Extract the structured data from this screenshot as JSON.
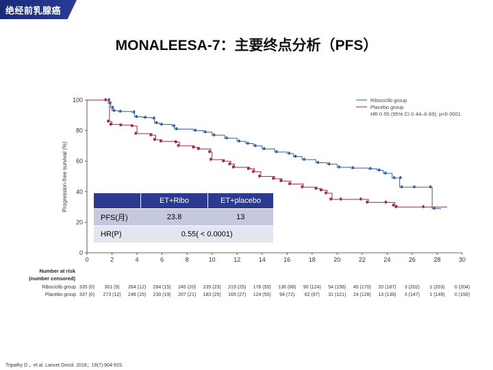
{
  "header": {
    "tag": "绝经前乳腺癌",
    "title": "MONALEESA-7：主要终点分析（PFS）"
  },
  "chart_data": {
    "type": "line",
    "title": "",
    "xlabel": "",
    "ylabel": "Progression-free survival (%)",
    "xlim": [
      0,
      30
    ],
    "ylim": [
      0,
      100
    ],
    "x_ticks": [
      "0",
      "2",
      "4",
      "6",
      "8",
      "10",
      "12",
      "14",
      "16",
      "18",
      "20",
      "22",
      "24",
      "26",
      "28",
      "30"
    ],
    "y_ticks": [
      "0",
      "20",
      "40",
      "60",
      "80",
      "100"
    ],
    "series": [
      {
        "name": "Ribociclib group",
        "color": "#2e5f9a",
        "points": [
          [
            0,
            100
          ],
          [
            1.6,
            100
          ],
          [
            1.7,
            98
          ],
          [
            1.9,
            95
          ],
          [
            2,
            93
          ],
          [
            2.5,
            92.5
          ],
          [
            3.6,
            92
          ],
          [
            3.8,
            89
          ],
          [
            4.5,
            88.5
          ],
          [
            5.2,
            88
          ],
          [
            5.4,
            85
          ],
          [
            5.8,
            84
          ],
          [
            6.8,
            83
          ],
          [
            7,
            81
          ],
          [
            8.5,
            80
          ],
          [
            9.3,
            79
          ],
          [
            10,
            77
          ],
          [
            11,
            75
          ],
          [
            12,
            73
          ],
          [
            12.7,
            71.5
          ],
          [
            13.3,
            70
          ],
          [
            14,
            68
          ],
          [
            15,
            66
          ],
          [
            16,
            65
          ],
          [
            16.5,
            63
          ],
          [
            17.2,
            61
          ],
          [
            18.3,
            59
          ],
          [
            19.2,
            58
          ],
          [
            20,
            56
          ],
          [
            21.1,
            55.5
          ],
          [
            22.5,
            55
          ],
          [
            23.2,
            54
          ],
          [
            23.7,
            52
          ],
          [
            24.4,
            49
          ],
          [
            24.9,
            49
          ],
          [
            25,
            43
          ],
          [
            26,
            43
          ],
          [
            27.3,
            43
          ],
          [
            27.6,
            29
          ],
          [
            28.3,
            29
          ]
        ]
      },
      {
        "name": "Placebo group",
        "color": "#a3224a",
        "points": [
          [
            0,
            100
          ],
          [
            1.6,
            100
          ],
          [
            1.8,
            86
          ],
          [
            2,
            84
          ],
          [
            2.8,
            83.5
          ],
          [
            3.7,
            83
          ],
          [
            4,
            78
          ],
          [
            5.2,
            77
          ],
          [
            5.5,
            74
          ],
          [
            6,
            73
          ],
          [
            7.2,
            72.5
          ],
          [
            7.4,
            70
          ],
          [
            8.6,
            69
          ],
          [
            9,
            68
          ],
          [
            9.9,
            66
          ],
          [
            10,
            61
          ],
          [
            11,
            60
          ],
          [
            11.5,
            58
          ],
          [
            11.8,
            56
          ],
          [
            13,
            55
          ],
          [
            13.4,
            53
          ],
          [
            13.9,
            50
          ],
          [
            15,
            48.5
          ],
          [
            15.6,
            47
          ],
          [
            16.3,
            45
          ],
          [
            17.3,
            43
          ],
          [
            18.4,
            42
          ],
          [
            18.8,
            41
          ],
          [
            19.2,
            39
          ],
          [
            19.6,
            35
          ],
          [
            20.4,
            35
          ],
          [
            22,
            35
          ],
          [
            22.5,
            33
          ],
          [
            24,
            33
          ],
          [
            24.6,
            31
          ],
          [
            24.8,
            30
          ],
          [
            27,
            30
          ],
          [
            28.8,
            30
          ]
        ]
      }
    ],
    "legend": [
      "Ribociclib group",
      "Placebo group",
      "HR 0·55 (95% CI 0·44–0·69); p<0·0001"
    ],
    "legend_position": "top-right",
    "number_at_risk": {
      "heading": [
        "Number at risk",
        "(number censored)"
      ],
      "rows": [
        {
          "label": "Ribociclib group",
          "values": [
            "335 (0)",
            "301 (9)",
            "264 (12)",
            "264 (15)",
            "245 (20)",
            "235 (23)",
            "219 (25)",
            "178 (55)",
            "136 (88)",
            "90 (124)",
            "54 (156)",
            "40 (170)",
            "20 (187)",
            "3 (202)",
            "1 (203)",
            "0 (204)"
          ]
        },
        {
          "label": "Placebo group",
          "values": [
            "337 (0)",
            "273 (12)",
            "248 (15)",
            "230 (19)",
            "207 (21)",
            "183 (25)",
            "165 (27)",
            "124 (50)",
            "94 (72)",
            "62 (97)",
            "31 (121)",
            "24 (128)",
            "13 (138)",
            "3 (147)",
            "1 (149)",
            "0 (150)"
          ]
        }
      ]
    }
  },
  "summary_table": {
    "headers": [
      "",
      "ET+Ribo",
      "ET+placebo"
    ],
    "pfs": {
      "label": "PFS(月)",
      "ribo": "23.8",
      "placebo": "13"
    },
    "hr": {
      "label": "HR(P)",
      "value": "0.55( < 0.0001)"
    }
  },
  "citation": "Tripathy D ，et al. Lancet Oncol. 2018；19(7):904-915."
}
